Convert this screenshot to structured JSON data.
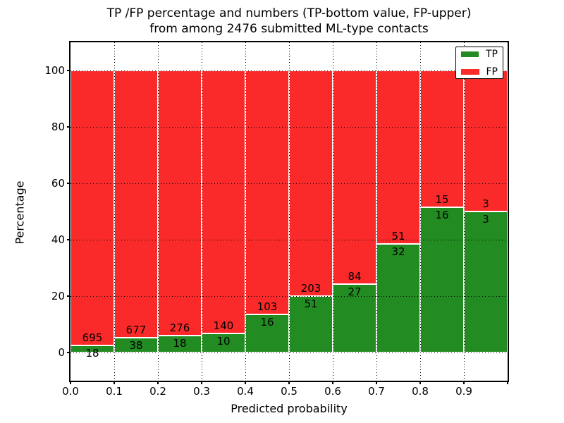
{
  "figure": {
    "title_line1": "TP /FP percentage and numbers (TP-bottom value, FP-upper)",
    "title_line2": "from among 2476 submitted ML-type contacts"
  },
  "chart_data": {
    "type": "bar",
    "subtype": "stacked-percentage-histogram",
    "title": "TP /FP percentage and numbers (TP-bottom value, FP-upper)\nfrom among 2476 submitted ML-type contacts",
    "xlabel": "Predicted probability",
    "ylabel": "Percentage",
    "total_contacts": 2476,
    "bin_width": 0.1,
    "categories": [
      "0.0-0.1",
      "0.1-0.2",
      "0.2-0.3",
      "0.3-0.4",
      "0.4-0.5",
      "0.5-0.6",
      "0.6-0.7",
      "0.7-0.8",
      "0.8-0.9",
      "0.9-1.0"
    ],
    "series": [
      {
        "name": "TP",
        "color": "#228b22",
        "counts": [
          18,
          38,
          18,
          10,
          16,
          51,
          27,
          32,
          16,
          3
        ]
      },
      {
        "name": "FP",
        "color": "#fb2a2a",
        "counts": [
          695,
          677,
          276,
          140,
          103,
          203,
          84,
          51,
          15,
          3
        ]
      }
    ],
    "bars_normalized_to": 100,
    "x_ticks": [
      "0.0",
      "0.1",
      "0.2",
      "0.3",
      "0.4",
      "0.5",
      "0.6",
      "0.7",
      "0.8",
      "0.9"
    ],
    "y_ticks": [
      0,
      20,
      40,
      60,
      80,
      100
    ],
    "xlim": [
      0.0,
      1.0
    ],
    "ylim": [
      -10,
      110
    ],
    "grid": "dotted black, vertical at each 0.1 and horizontal at each y tick",
    "legend_position": "upper right",
    "colors": {
      "tp": "#228b22",
      "fp": "#fb2a2a",
      "grid": "#000000",
      "background": "#ffffff",
      "bar_edge": "#ffffff"
    }
  }
}
